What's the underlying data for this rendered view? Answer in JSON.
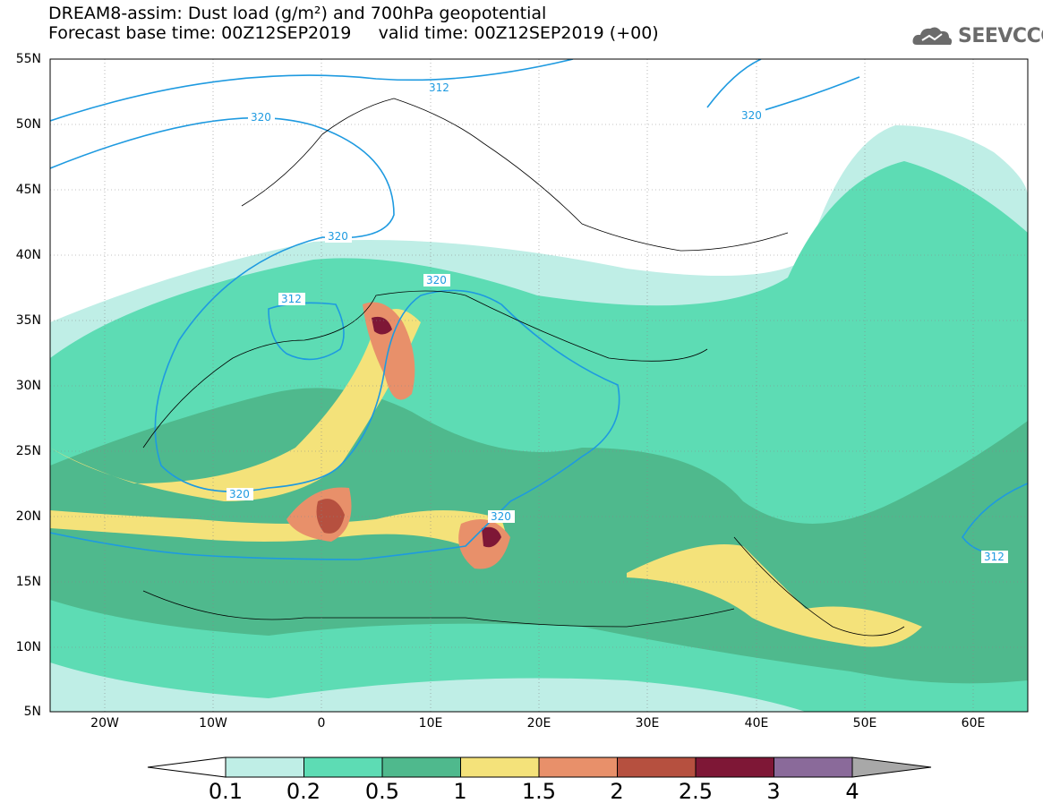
{
  "title": {
    "line1": "DREAM8-assim: Dust load (g/m²) and 700hPa geopotential",
    "line2": "Forecast base time: 00Z12SEP2019     valid time: 00Z12SEP2019 (+00)"
  },
  "logo": {
    "text": "SEEVCCC",
    "icon": "cloud-logo-icon"
  },
  "axes": {
    "lat_labels": [
      "55N",
      "50N",
      "45N",
      "40N",
      "35N",
      "30N",
      "25N",
      "20N",
      "15N",
      "10N",
      "5N"
    ],
    "lon_labels": [
      "20W",
      "10W",
      "0",
      "10E",
      "20E",
      "30E",
      "40E",
      "50E",
      "60E"
    ],
    "lat_range": [
      5,
      55
    ],
    "lon_range": [
      -25,
      65
    ]
  },
  "contours": {
    "geopotential_labels": [
      "312",
      "320",
      "320",
      "320",
      "312",
      "320",
      "320",
      "320",
      "312"
    ]
  },
  "colorbar": {
    "ticks": [
      "0.1",
      "0.2",
      "0.5",
      "1",
      "1.5",
      "2",
      "2.5",
      "3",
      "4"
    ],
    "colors": [
      "#bfeee6",
      "#5ddcb4",
      "#4fb98d",
      "#f4e27a",
      "#e8906a",
      "#b6503f",
      "#7e1736",
      "#8a6a9a",
      "#a8a8a8"
    ]
  },
  "colors": {
    "land_background": "#ffffff",
    "contour_line": "#1e9ae0",
    "border_line": "#000000"
  }
}
